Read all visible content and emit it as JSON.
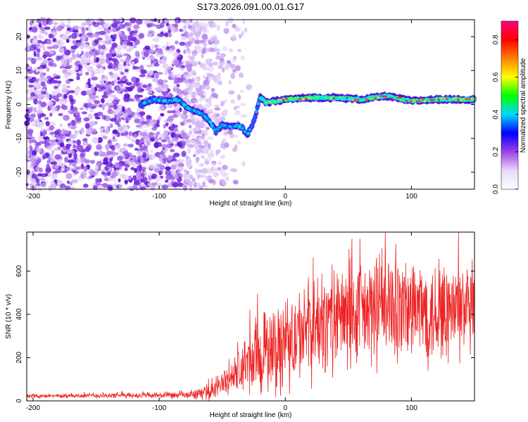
{
  "title": "S173.2026.091.00.01.G17",
  "chart_data": [
    {
      "type": "heatmap",
      "xlabel": "Height of straight line (km)",
      "ylabel": "Frequency (Hz)",
      "xlim": [
        -205,
        150
      ],
      "ylim": [
        -25,
        25
      ],
      "x_ticks": [
        -200,
        -100,
        0,
        100
      ],
      "y_ticks": [
        -20,
        -10,
        0,
        10,
        20
      ],
      "colorbar": {
        "label": "Normalized spectral amplitude",
        "range": [
          0,
          0.9
        ],
        "ticks": [
          0.0,
          0.2,
          0.4,
          0.6,
          0.8
        ],
        "colormap": [
          "#ffffff",
          "#e8d8f8",
          "#a040e8",
          "#0000ff",
          "#00d8ff",
          "#00ff00",
          "#ffff00",
          "#ff8000",
          "#ff0000",
          "#ff0080"
        ]
      },
      "ridge_trace": [
        {
          "x": -115,
          "y": 0.0
        },
        {
          "x": -105,
          "y": 1.5
        },
        {
          "x": -95,
          "y": 1.0
        },
        {
          "x": -85,
          "y": 1.5
        },
        {
          "x": -75,
          "y": -1.5
        },
        {
          "x": -65,
          "y": -3.0
        },
        {
          "x": -60,
          "y": -5.0
        },
        {
          "x": -55,
          "y": -8.0
        },
        {
          "x": -50,
          "y": -6.0
        },
        {
          "x": -45,
          "y": -6.5
        },
        {
          "x": -40,
          "y": -6.5
        },
        {
          "x": -35,
          "y": -6.5
        },
        {
          "x": -30,
          "y": -9.0
        },
        {
          "x": -25,
          "y": -5.0
        },
        {
          "x": -20,
          "y": 2.0
        },
        {
          "x": -15,
          "y": 0.5
        },
        {
          "x": 0,
          "y": 1.5
        },
        {
          "x": 20,
          "y": 2.0
        },
        {
          "x": 40,
          "y": 2.0
        },
        {
          "x": 60,
          "y": 1.5
        },
        {
          "x": 80,
          "y": 2.5
        },
        {
          "x": 100,
          "y": 1.0
        },
        {
          "x": 120,
          "y": 1.5
        },
        {
          "x": 150,
          "y": 1.5
        }
      ]
    },
    {
      "type": "line",
      "xlabel": "Height of straight line (km)",
      "ylabel": "SNR (10 * v/v)",
      "xlim": [
        -205,
        150
      ],
      "ylim": [
        0,
        780
      ],
      "x_ticks": [
        -200,
        -100,
        0,
        100
      ],
      "y_ticks": [
        0,
        200,
        400,
        600
      ],
      "color": "#ee2222",
      "envelope": [
        {
          "x": -205,
          "mean": 22,
          "spread": 10
        },
        {
          "x": -130,
          "mean": 25,
          "spread": 15
        },
        {
          "x": -80,
          "mean": 25,
          "spread": 20
        },
        {
          "x": -60,
          "mean": 40,
          "spread": 40
        },
        {
          "x": -50,
          "mean": 80,
          "spread": 80
        },
        {
          "x": -40,
          "mean": 120,
          "spread": 120
        },
        {
          "x": -30,
          "mean": 170,
          "spread": 180
        },
        {
          "x": -20,
          "mean": 200,
          "spread": 220
        },
        {
          "x": -10,
          "mean": 230,
          "spread": 260
        },
        {
          "x": 0,
          "mean": 260,
          "spread": 260
        },
        {
          "x": 20,
          "mean": 330,
          "spread": 280
        },
        {
          "x": 40,
          "mean": 380,
          "spread": 300
        },
        {
          "x": 60,
          "mean": 400,
          "spread": 300
        },
        {
          "x": 80,
          "mean": 420,
          "spread": 320
        },
        {
          "x": 100,
          "mean": 420,
          "spread": 300
        },
        {
          "x": 130,
          "mean": 410,
          "spread": 300
        },
        {
          "x": 150,
          "mean": 420,
          "spread": 260
        }
      ],
      "n_points": 1400
    }
  ]
}
